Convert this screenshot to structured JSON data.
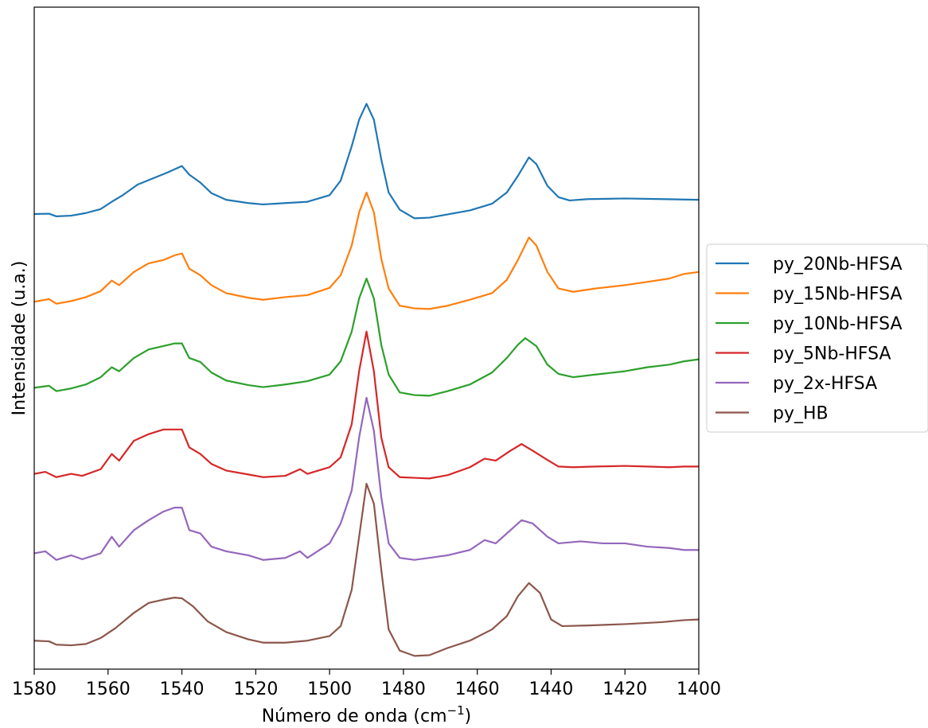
{
  "chart_data": {
    "type": "line",
    "title": "",
    "xlabel": "Número de onda (cm",
    "xlabel_sup": "−1",
    "xlabel_end": ")",
    "ylabel": "Intensidade (u.a.)",
    "xlim": [
      1580,
      1400
    ],
    "ylim": [
      0,
      1
    ],
    "x_reversed": true,
    "yticks_visible": false,
    "grid": false,
    "legend_position": "outside-right",
    "xticks": [
      {
        "value": 1580,
        "label": "1580"
      },
      {
        "value": 1560,
        "label": "1560"
      },
      {
        "value": 1540,
        "label": "1540"
      },
      {
        "value": 1520,
        "label": "1520"
      },
      {
        "value": 1500,
        "label": "1500"
      },
      {
        "value": 1480,
        "label": "1480"
      },
      {
        "value": 1460,
        "label": "1460"
      },
      {
        "value": 1440,
        "label": "1440"
      },
      {
        "value": 1420,
        "label": "1420"
      },
      {
        "value": 1400,
        "label": "1400"
      }
    ],
    "series": [
      {
        "name": "py_20Nb-HFSA",
        "color": "#1f77b4",
        "points": [
          [
            1580,
            0.6875
          ],
          [
            1576,
            0.688
          ],
          [
            1574,
            0.684
          ],
          [
            1570,
            0.685
          ],
          [
            1566,
            0.689
          ],
          [
            1562,
            0.695
          ],
          [
            1559,
            0.706
          ],
          [
            1556,
            0.716
          ],
          [
            1552,
            0.732
          ],
          [
            1548,
            0.741
          ],
          [
            1544,
            0.75
          ],
          [
            1540,
            0.76
          ],
          [
            1538,
            0.747
          ],
          [
            1535,
            0.735
          ],
          [
            1532,
            0.719
          ],
          [
            1528,
            0.709
          ],
          [
            1522,
            0.704
          ],
          [
            1518,
            0.702
          ],
          [
            1512,
            0.704
          ],
          [
            1506,
            0.706
          ],
          [
            1500,
            0.716
          ],
          [
            1497,
            0.738
          ],
          [
            1494,
            0.79
          ],
          [
            1492,
            0.83
          ],
          [
            1490,
            0.854
          ],
          [
            1488,
            0.83
          ],
          [
            1486,
            0.77
          ],
          [
            1484,
            0.72
          ],
          [
            1481,
            0.694
          ],
          [
            1477,
            0.681
          ],
          [
            1473,
            0.682
          ],
          [
            1468,
            0.687
          ],
          [
            1462,
            0.693
          ],
          [
            1456,
            0.703
          ],
          [
            1452,
            0.72
          ],
          [
            1449,
            0.745
          ],
          [
            1446,
            0.773
          ],
          [
            1444,
            0.763
          ],
          [
            1441,
            0.73
          ],
          [
            1438,
            0.713
          ],
          [
            1435,
            0.708
          ],
          [
            1430,
            0.71
          ],
          [
            1420,
            0.711
          ],
          [
            1410,
            0.71
          ],
          [
            1400,
            0.709
          ]
        ]
      },
      {
        "name": "py_15Nb-HFSA",
        "color": "#ff7f0e",
        "points": [
          [
            1580,
            0.555
          ],
          [
            1576,
            0.559
          ],
          [
            1574,
            0.552
          ],
          [
            1570,
            0.556
          ],
          [
            1566,
            0.562
          ],
          [
            1562,
            0.571
          ],
          [
            1559,
            0.587
          ],
          [
            1557,
            0.58
          ],
          [
            1553,
            0.6
          ],
          [
            1549,
            0.613
          ],
          [
            1545,
            0.618
          ],
          [
            1542,
            0.625
          ],
          [
            1540,
            0.628
          ],
          [
            1538,
            0.605
          ],
          [
            1535,
            0.595
          ],
          [
            1532,
            0.58
          ],
          [
            1528,
            0.568
          ],
          [
            1522,
            0.561
          ],
          [
            1518,
            0.558
          ],
          [
            1512,
            0.562
          ],
          [
            1506,
            0.565
          ],
          [
            1500,
            0.576
          ],
          [
            1497,
            0.595
          ],
          [
            1494,
            0.64
          ],
          [
            1492,
            0.69
          ],
          [
            1490,
            0.72
          ],
          [
            1488,
            0.69
          ],
          [
            1486,
            0.62
          ],
          [
            1484,
            0.575
          ],
          [
            1481,
            0.549
          ],
          [
            1477,
            0.545
          ],
          [
            1473,
            0.544
          ],
          [
            1468,
            0.549
          ],
          [
            1462,
            0.558
          ],
          [
            1456,
            0.568
          ],
          [
            1452,
            0.588
          ],
          [
            1449,
            0.618
          ],
          [
            1446,
            0.652
          ],
          [
            1444,
            0.64
          ],
          [
            1441,
            0.6
          ],
          [
            1438,
            0.575
          ],
          [
            1434,
            0.57
          ],
          [
            1428,
            0.575
          ],
          [
            1420,
            0.58
          ],
          [
            1414,
            0.585
          ],
          [
            1408,
            0.59
          ],
          [
            1404,
            0.597
          ],
          [
            1400,
            0.6
          ]
        ]
      },
      {
        "name": "py_10Nb-HFSA",
        "color": "#2ca02c",
        "points": [
          [
            1580,
            0.425
          ],
          [
            1576,
            0.428
          ],
          [
            1574,
            0.42
          ],
          [
            1570,
            0.424
          ],
          [
            1566,
            0.43
          ],
          [
            1562,
            0.441
          ],
          [
            1559,
            0.456
          ],
          [
            1557,
            0.45
          ],
          [
            1553,
            0.47
          ],
          [
            1549,
            0.483
          ],
          [
            1545,
            0.488
          ],
          [
            1542,
            0.492
          ],
          [
            1540,
            0.492
          ],
          [
            1538,
            0.47
          ],
          [
            1535,
            0.464
          ],
          [
            1532,
            0.448
          ],
          [
            1528,
            0.436
          ],
          [
            1522,
            0.429
          ],
          [
            1518,
            0.426
          ],
          [
            1512,
            0.43
          ],
          [
            1506,
            0.435
          ],
          [
            1500,
            0.445
          ],
          [
            1497,
            0.465
          ],
          [
            1494,
            0.51
          ],
          [
            1492,
            0.56
          ],
          [
            1490,
            0.59
          ],
          [
            1488,
            0.56
          ],
          [
            1486,
            0.49
          ],
          [
            1484,
            0.445
          ],
          [
            1481,
            0.418
          ],
          [
            1477,
            0.414
          ],
          [
            1473,
            0.413
          ],
          [
            1468,
            0.42
          ],
          [
            1462,
            0.43
          ],
          [
            1456,
            0.448
          ],
          [
            1452,
            0.47
          ],
          [
            1449,
            0.49
          ],
          [
            1447,
            0.5
          ],
          [
            1444,
            0.488
          ],
          [
            1441,
            0.46
          ],
          [
            1438,
            0.446
          ],
          [
            1434,
            0.441
          ],
          [
            1428,
            0.445
          ],
          [
            1420,
            0.45
          ],
          [
            1414,
            0.456
          ],
          [
            1408,
            0.46
          ],
          [
            1404,
            0.465
          ],
          [
            1400,
            0.468
          ]
        ]
      },
      {
        "name": "py_5Nb-HFSA",
        "color": "#d62728",
        "points": [
          [
            1580,
            0.295
          ],
          [
            1577,
            0.298
          ],
          [
            1574,
            0.29
          ],
          [
            1570,
            0.295
          ],
          [
            1567,
            0.292
          ],
          [
            1562,
            0.302
          ],
          [
            1559,
            0.325
          ],
          [
            1557,
            0.315
          ],
          [
            1553,
            0.345
          ],
          [
            1549,
            0.355
          ],
          [
            1545,
            0.362
          ],
          [
            1542,
            0.362
          ],
          [
            1540,
            0.362
          ],
          [
            1538,
            0.335
          ],
          [
            1535,
            0.325
          ],
          [
            1532,
            0.31
          ],
          [
            1528,
            0.3
          ],
          [
            1522,
            0.294
          ],
          [
            1518,
            0.29
          ],
          [
            1512,
            0.292
          ],
          [
            1508,
            0.302
          ],
          [
            1506,
            0.295
          ],
          [
            1500,
            0.305
          ],
          [
            1497,
            0.32
          ],
          [
            1494,
            0.37
          ],
          [
            1492,
            0.45
          ],
          [
            1490,
            0.51
          ],
          [
            1488,
            0.45
          ],
          [
            1486,
            0.35
          ],
          [
            1484,
            0.305
          ],
          [
            1481,
            0.29
          ],
          [
            1477,
            0.289
          ],
          [
            1473,
            0.288
          ],
          [
            1468,
            0.293
          ],
          [
            1462,
            0.305
          ],
          [
            1458,
            0.318
          ],
          [
            1455,
            0.315
          ],
          [
            1451,
            0.33
          ],
          [
            1448,
            0.34
          ],
          [
            1445,
            0.33
          ],
          [
            1441,
            0.316
          ],
          [
            1438,
            0.306
          ],
          [
            1434,
            0.305
          ],
          [
            1428,
            0.306
          ],
          [
            1420,
            0.307
          ],
          [
            1414,
            0.306
          ],
          [
            1408,
            0.305
          ],
          [
            1404,
            0.306
          ],
          [
            1400,
            0.306
          ]
        ]
      },
      {
        "name": "py_2x-HFSA",
        "color": "#9467bd",
        "points": [
          [
            1580,
            0.175
          ],
          [
            1577,
            0.178
          ],
          [
            1574,
            0.165
          ],
          [
            1570,
            0.172
          ],
          [
            1567,
            0.166
          ],
          [
            1562,
            0.175
          ],
          [
            1559,
            0.2
          ],
          [
            1557,
            0.185
          ],
          [
            1553,
            0.21
          ],
          [
            1549,
            0.225
          ],
          [
            1545,
            0.238
          ],
          [
            1542,
            0.244
          ],
          [
            1540,
            0.244
          ],
          [
            1538,
            0.21
          ],
          [
            1535,
            0.205
          ],
          [
            1532,
            0.185
          ],
          [
            1528,
            0.178
          ],
          [
            1522,
            0.172
          ],
          [
            1518,
            0.165
          ],
          [
            1512,
            0.168
          ],
          [
            1508,
            0.178
          ],
          [
            1506,
            0.168
          ],
          [
            1500,
            0.19
          ],
          [
            1497,
            0.22
          ],
          [
            1494,
            0.27
          ],
          [
            1492,
            0.35
          ],
          [
            1490,
            0.41
          ],
          [
            1488,
            0.36
          ],
          [
            1486,
            0.26
          ],
          [
            1484,
            0.19
          ],
          [
            1481,
            0.168
          ],
          [
            1477,
            0.165
          ],
          [
            1473,
            0.168
          ],
          [
            1468,
            0.172
          ],
          [
            1462,
            0.18
          ],
          [
            1458,
            0.195
          ],
          [
            1455,
            0.19
          ],
          [
            1451,
            0.21
          ],
          [
            1448,
            0.225
          ],
          [
            1445,
            0.22
          ],
          [
            1441,
            0.2
          ],
          [
            1438,
            0.19
          ],
          [
            1432,
            0.193
          ],
          [
            1426,
            0.19
          ],
          [
            1420,
            0.19
          ],
          [
            1414,
            0.185
          ],
          [
            1408,
            0.183
          ],
          [
            1404,
            0.18
          ],
          [
            1400,
            0.18
          ]
        ]
      },
      {
        "name": "py_HB",
        "color": "#8c564b",
        "points": [
          [
            1580,
            0.043
          ],
          [
            1576,
            0.042
          ],
          [
            1574,
            0.037
          ],
          [
            1570,
            0.036
          ],
          [
            1566,
            0.038
          ],
          [
            1562,
            0.047
          ],
          [
            1558,
            0.062
          ],
          [
            1553,
            0.085
          ],
          [
            1549,
            0.1
          ],
          [
            1545,
            0.105
          ],
          [
            1542,
            0.108
          ],
          [
            1540,
            0.107
          ],
          [
            1537,
            0.095
          ],
          [
            1533,
            0.072
          ],
          [
            1528,
            0.056
          ],
          [
            1522,
            0.045
          ],
          [
            1518,
            0.04
          ],
          [
            1512,
            0.04
          ],
          [
            1506,
            0.043
          ],
          [
            1500,
            0.05
          ],
          [
            1497,
            0.065
          ],
          [
            1494,
            0.12
          ],
          [
            1492,
            0.2
          ],
          [
            1490,
            0.28
          ],
          [
            1488,
            0.25
          ],
          [
            1486,
            0.15
          ],
          [
            1484,
            0.06
          ],
          [
            1481,
            0.028
          ],
          [
            1477,
            0.02
          ],
          [
            1473,
            0.021
          ],
          [
            1468,
            0.032
          ],
          [
            1462,
            0.043
          ],
          [
            1456,
            0.06
          ],
          [
            1452,
            0.08
          ],
          [
            1449,
            0.11
          ],
          [
            1446,
            0.13
          ],
          [
            1443,
            0.115
          ],
          [
            1440,
            0.075
          ],
          [
            1437,
            0.065
          ],
          [
            1430,
            0.066
          ],
          [
            1420,
            0.068
          ],
          [
            1410,
            0.071
          ],
          [
            1404,
            0.074
          ],
          [
            1400,
            0.075
          ]
        ]
      }
    ]
  }
}
